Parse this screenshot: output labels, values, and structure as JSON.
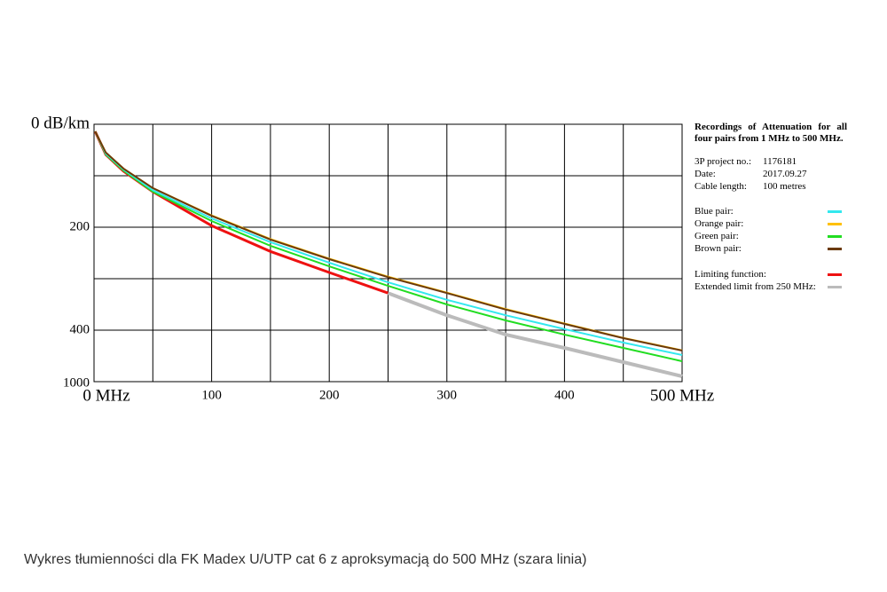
{
  "chart_data": {
    "type": "line",
    "title": "Recordings of Attenuation for all four pairs from 1 MHz to 500 MHz.",
    "xlim": [
      0,
      500
    ],
    "xticks": [
      {
        "value": 0,
        "label": "0 MHz"
      },
      100,
      200,
      300,
      400,
      {
        "value": 500,
        "label": "500 MHz"
      }
    ],
    "xgrid": [
      0,
      50,
      100,
      150,
      200,
      250,
      300,
      350,
      400,
      450,
      500
    ],
    "ylim": [
      0,
      1000
    ],
    "yticks": [
      {
        "value": 0,
        "label": "0 dB/km"
      },
      200,
      400,
      1000
    ],
    "ygrid": [
      0,
      100,
      200,
      300,
      400,
      1000
    ],
    "info": [
      {
        "label": "3P project no.:",
        "value": "1176181"
      },
      {
        "label": "Date:",
        "value": "2017.09.27"
      },
      {
        "label": "Cable length:",
        "value": "100 metres"
      }
    ],
    "series": [
      {
        "name": "Blue pair:",
        "color": "#33e8ee",
        "width": 2,
        "x": [
          1,
          10,
          25,
          50,
          100,
          150,
          200,
          250,
          300,
          350,
          400,
          450,
          500
        ],
        "values": [
          14,
          57,
          88,
          128,
          183,
          229,
          269,
          307,
          341,
          371,
          398,
          545,
          690
        ]
      },
      {
        "name": "Orange pair:",
        "color": "#ffc000",
        "width": 2,
        "x": [
          1,
          10,
          25,
          50,
          100,
          150,
          200,
          250,
          300,
          350,
          400,
          450,
          500
        ],
        "values": [
          14,
          55,
          86,
          124,
          177,
          223,
          261,
          296,
          327,
          359,
          387,
          490,
          635
        ]
      },
      {
        "name": "Green pair:",
        "color": "#22dd22",
        "width": 2,
        "x": [
          1,
          10,
          25,
          50,
          100,
          150,
          200,
          250,
          300,
          350,
          400,
          450,
          500
        ],
        "values": [
          14,
          59,
          90,
          131,
          188,
          236,
          276,
          314,
          350,
          381,
          452,
          607,
          762
        ]
      },
      {
        "name": "Brown pair:",
        "color": "#6b3a0c",
        "width": 2,
        "x": [
          1,
          10,
          25,
          50,
          100,
          150,
          200,
          250,
          300,
          350,
          400,
          450,
          500
        ],
        "values": [
          14,
          55,
          86,
          124,
          178,
          224,
          262,
          297,
          328,
          360,
          388,
          493,
          638
        ]
      },
      {
        "name": "Limiting function:",
        "color": "#ee1111",
        "width": 3,
        "x": [
          1,
          10,
          25,
          50,
          100,
          150,
          200,
          250
        ],
        "values": [
          14,
          59,
          91,
          131,
          197,
          247,
          288,
          328
        ]
      },
      {
        "name": "Extended limit from 250 MHz:",
        "color": "#bbbbbb",
        "width": 4,
        "x": [
          250,
          300,
          350,
          400,
          450,
          500
        ],
        "values": [
          328,
          371,
          452,
          607,
          772,
          938
        ]
      }
    ]
  },
  "caption": "Wykres tłumienności dla FK Madex U/UTP cat 6 z aproksymacją do 500 MHz (szara linia)"
}
